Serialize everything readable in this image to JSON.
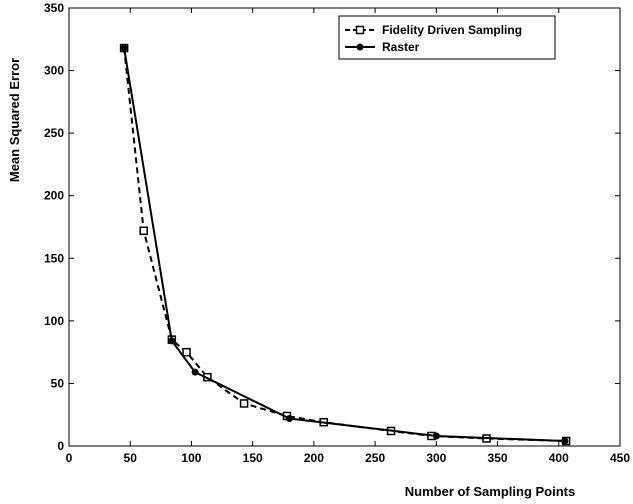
{
  "chart_data": {
    "type": "line",
    "title": "",
    "xlabel": "Number of Sampling Points",
    "ylabel": "Mean Squared Error",
    "xlim": [
      0,
      450
    ],
    "ylim": [
      0,
      350
    ],
    "xticks": [
      0,
      50,
      100,
      150,
      200,
      250,
      300,
      350,
      400,
      450
    ],
    "yticks": [
      0,
      50,
      100,
      150,
      200,
      250,
      300,
      350
    ],
    "grid": false,
    "legend_position": "top-right",
    "series": [
      {
        "name": "Fidelity Driven Sampling",
        "style": "dashed",
        "marker": "square-open",
        "color": "#000000",
        "x": [
          45,
          61,
          84,
          96,
          113,
          143,
          178,
          208,
          263,
          296,
          341,
          406
        ],
        "y": [
          318,
          172,
          85,
          75,
          55,
          34,
          24,
          19,
          12,
          8,
          6,
          4
        ]
      },
      {
        "name": "Raster",
        "style": "solid",
        "marker": "dot-filled",
        "color": "#000000",
        "x": [
          45,
          84,
          103,
          180,
          300,
          405
        ],
        "y": [
          318,
          84,
          59,
          22,
          8,
          4
        ]
      }
    ]
  }
}
